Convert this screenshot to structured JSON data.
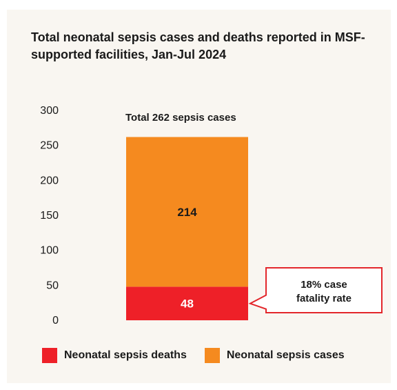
{
  "chart_data": {
    "type": "bar",
    "stacked": true,
    "title": "Total neonatal sepsis cases and deaths reported in MSF-supported facilities, Jan-Jul 2024",
    "ylim": [
      0,
      300
    ],
    "yticks": [
      0,
      50,
      100,
      150,
      200,
      250,
      300
    ],
    "total_label": "Total 262 sepsis cases",
    "series": [
      {
        "name": "Neonatal sepsis deaths",
        "value": 48,
        "label": "48",
        "color": "#ee2028"
      },
      {
        "name": "Neonatal sepsis cases",
        "value": 214,
        "label": "214",
        "color": "#f58a1f"
      }
    ],
    "callout": {
      "line1": "18% case",
      "line2": "fatality rate",
      "border_color": "#e3262b"
    },
    "legend_position": "bottom"
  }
}
